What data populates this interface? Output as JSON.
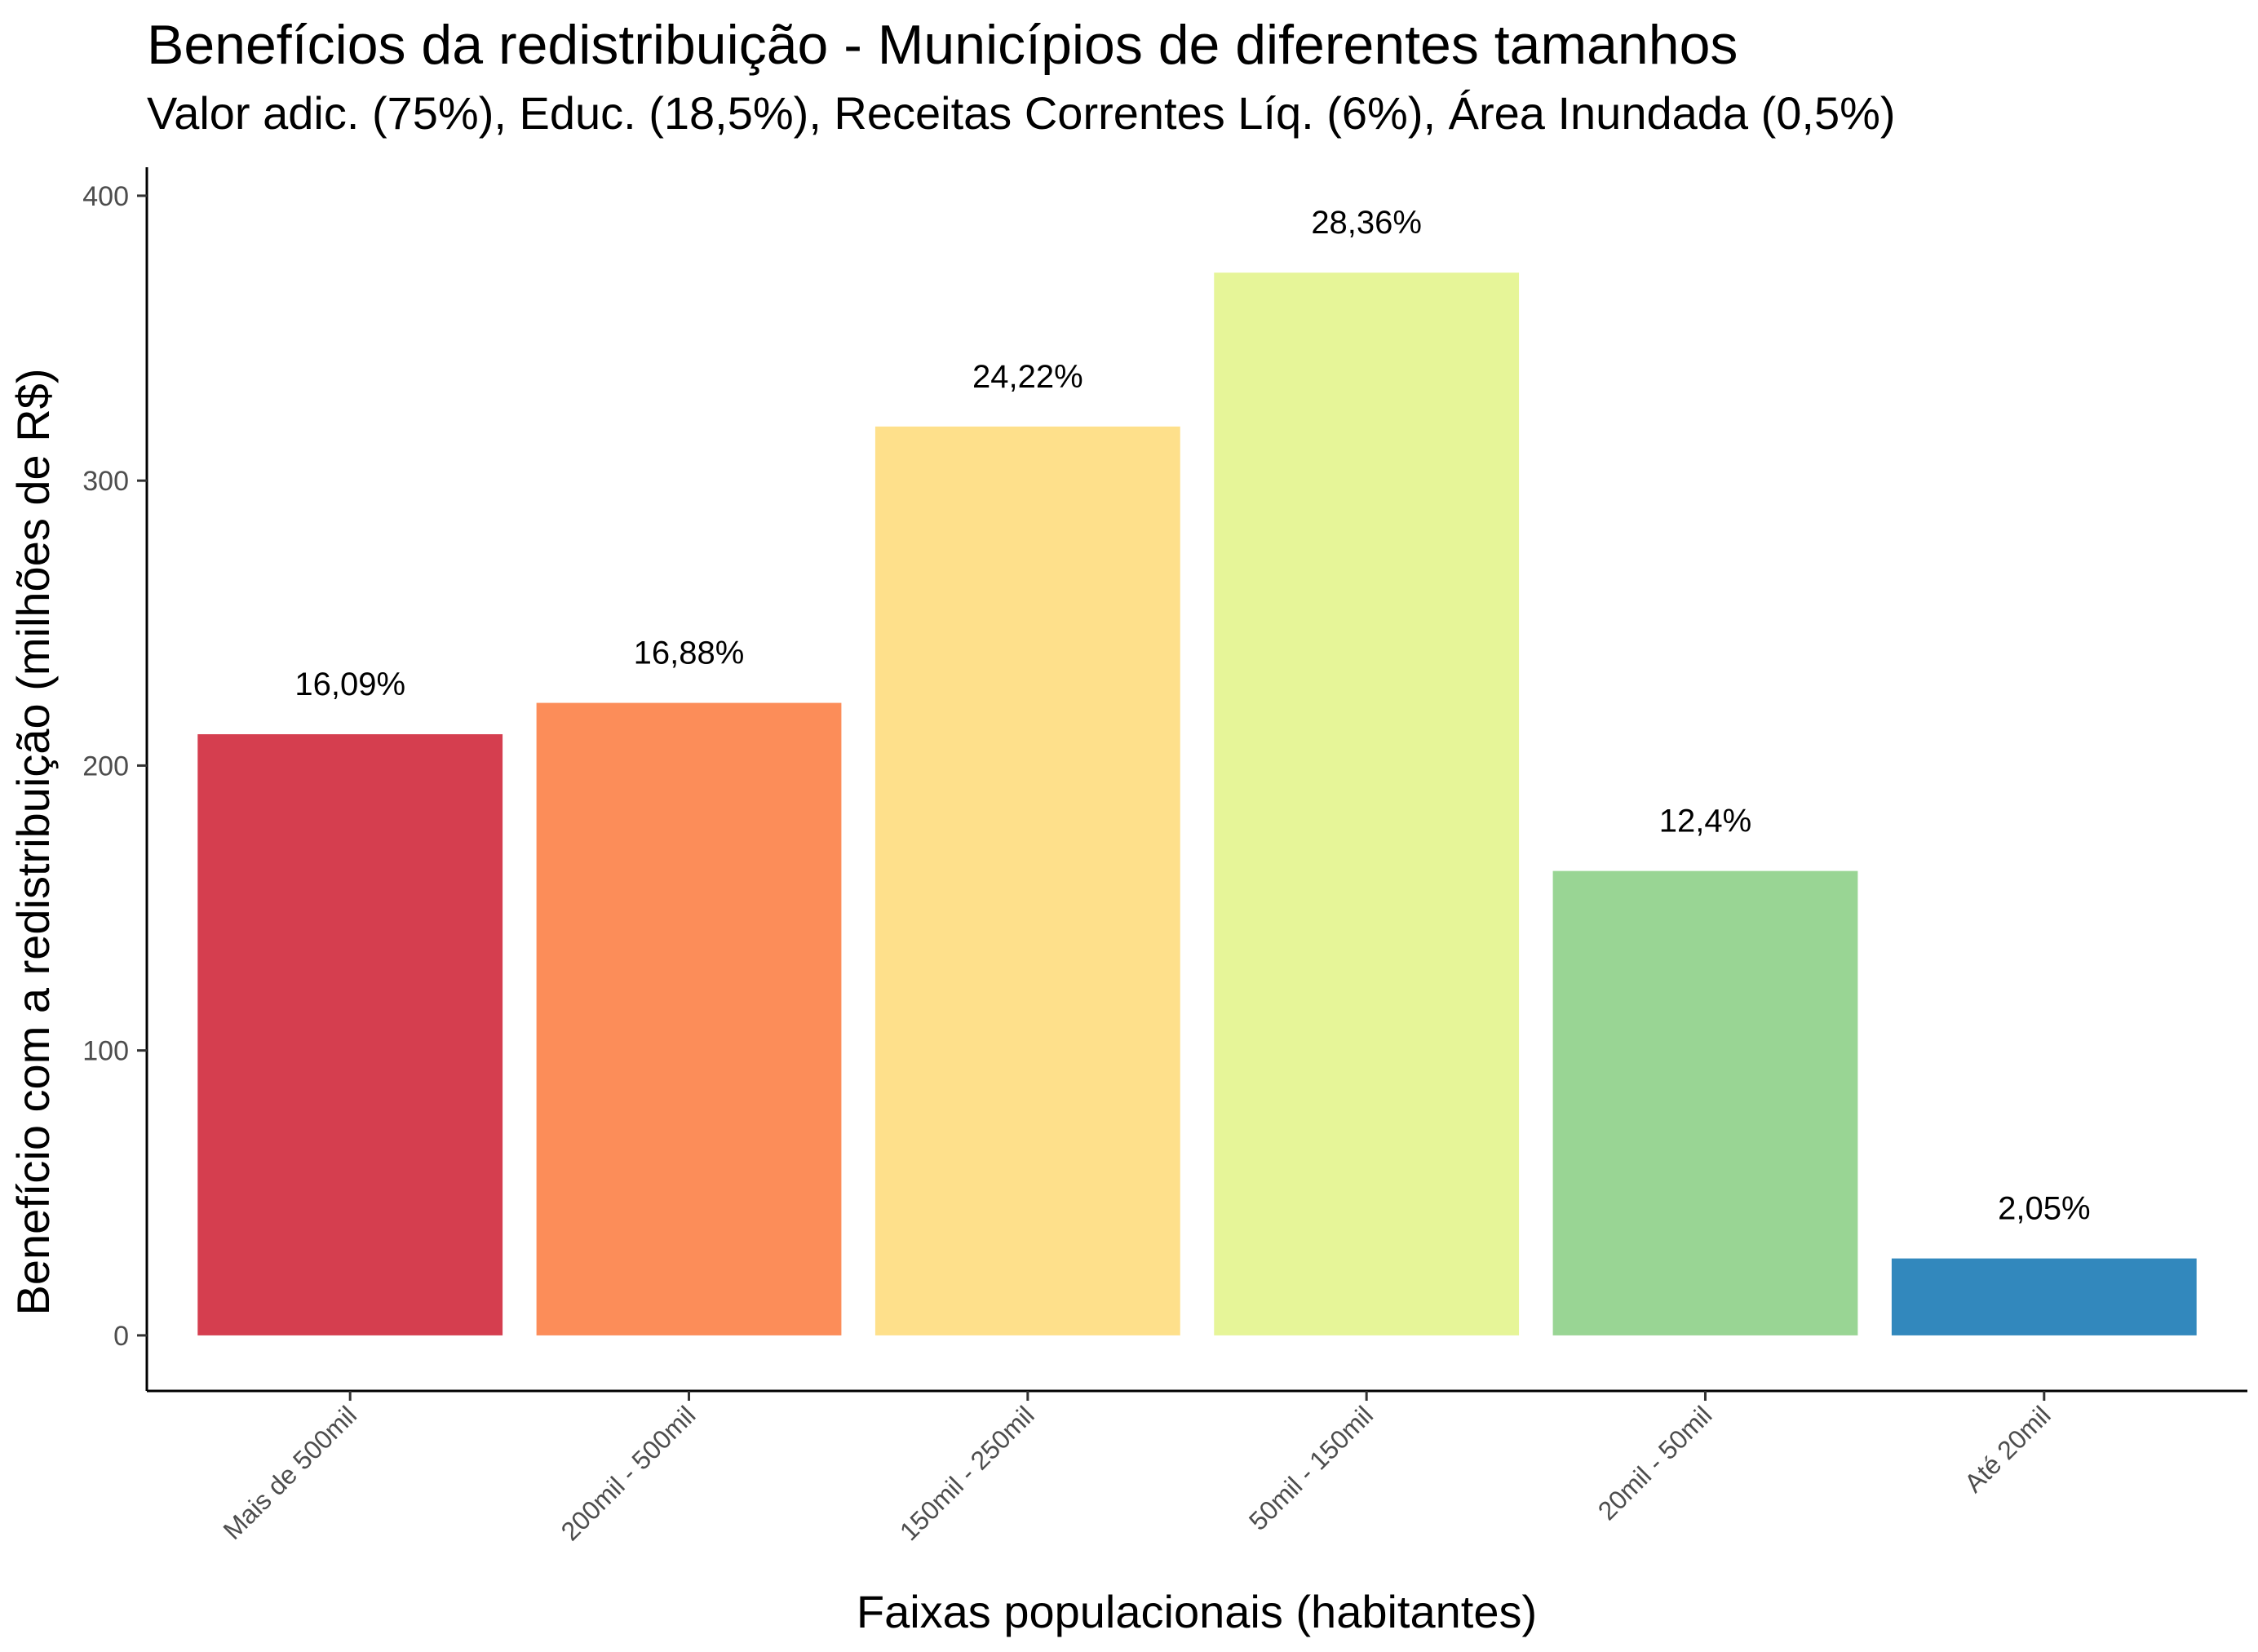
{
  "chart_data": {
    "type": "bar",
    "title": "Benefícios da redistribuição - Municípios de diferentes tamanhos",
    "subtitle": "Valor adic. (75%), Educ. (18,5%), Receitas Correntes Líq. (6%), Área Inundada (0,5%)",
    "xlabel": "Faixas populacionais (habitantes)",
    "ylabel": "Benefício com a redistribuição (milhões de R$)",
    "categories": [
      "Mais de 500mil",
      "200mil - 500mil",
      "150mil - 250mil",
      "50mil - 150mil",
      "20mil - 50mil",
      "Até 20mil"
    ],
    "values": [
      211,
      222,
      319,
      373,
      163,
      27
    ],
    "labels": [
      "16,09%",
      "16,88%",
      "24,22%",
      "28,36%",
      "12,4%",
      "2,05%"
    ],
    "colors": [
      "#D53E4F",
      "#FC8D59",
      "#FEE08B",
      "#E6F598",
      "#99D594",
      "#3288BD"
    ],
    "yticks": [
      0,
      100,
      200,
      300,
      400
    ],
    "ytick_labels": [
      "0",
      "100",
      "200",
      "300",
      "400"
    ],
    "ylim": [
      -19.5,
      410
    ],
    "grid": false,
    "legend": "none"
  }
}
